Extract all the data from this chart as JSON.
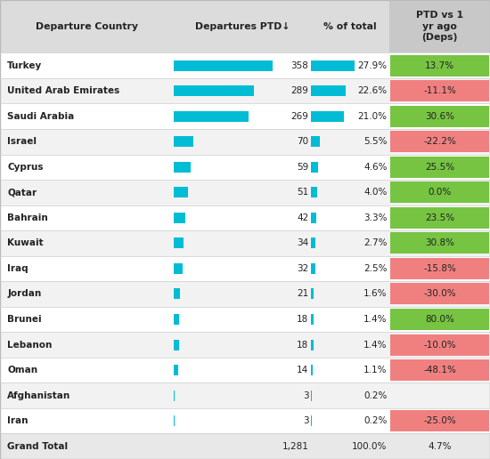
{
  "countries": [
    "Turkey",
    "United Arab Emirates",
    "Saudi Arabia",
    "Israel",
    "Cyprus",
    "Qatar",
    "Bahrain",
    "Kuwait",
    "Iraq",
    "Jordan",
    "Brunei",
    "Lebanon",
    "Oman",
    "Afghanistan",
    "Iran",
    "Grand Total"
  ],
  "departures": [
    358,
    289,
    269,
    70,
    59,
    51,
    42,
    34,
    32,
    21,
    18,
    18,
    14,
    3,
    3,
    1281
  ],
  "departures_fmt": [
    "358",
    "289",
    "269",
    "70",
    "59",
    "51",
    "42",
    "34",
    "32",
    "21",
    "18",
    "18",
    "14",
    "3",
    "3",
    "1,281"
  ],
  "pct_total": [
    "27.9%",
    "22.6%",
    "21.0%",
    "5.5%",
    "4.6%",
    "4.0%",
    "3.3%",
    "2.7%",
    "2.5%",
    "1.6%",
    "1.4%",
    "1.4%",
    "1.1%",
    "0.2%",
    "0.2%",
    "100.0%"
  ],
  "ptd_vs_1yr": [
    "13.7%",
    "-11.1%",
    "30.6%",
    "-22.2%",
    "25.5%",
    "0.0%",
    "23.5%",
    "30.8%",
    "-15.8%",
    "-30.0%",
    "80.0%",
    "-10.0%",
    "-48.1%",
    "",
    "-25.0%",
    "4.7%"
  ],
  "ptd_values": [
    13.7,
    -11.1,
    30.6,
    -22.2,
    25.5,
    0.0,
    23.5,
    30.8,
    -15.8,
    -30.0,
    80.0,
    -10.0,
    -48.1,
    null,
    -25.0,
    4.7
  ],
  "bar_max": 358,
  "pct_bar_max": 27.9,
  "bar_color": "#00BCD4",
  "green_color": "#76C442",
  "red_color": "#F08080",
  "header_bg": "#DCDCDC",
  "header_ptd_bg": "#C8C8C8",
  "row_bg_white": "#FFFFFF",
  "row_bg_gray": "#F2F2F2",
  "grand_total_bg": "#E8E8E8",
  "col_headers": [
    "Departure Country",
    "Departures PTD↓",
    "% of total",
    "PTD vs 1\nyr ago\n(Deps)"
  ],
  "figsize": [
    5.5,
    5.16
  ],
  "dpi": 100
}
